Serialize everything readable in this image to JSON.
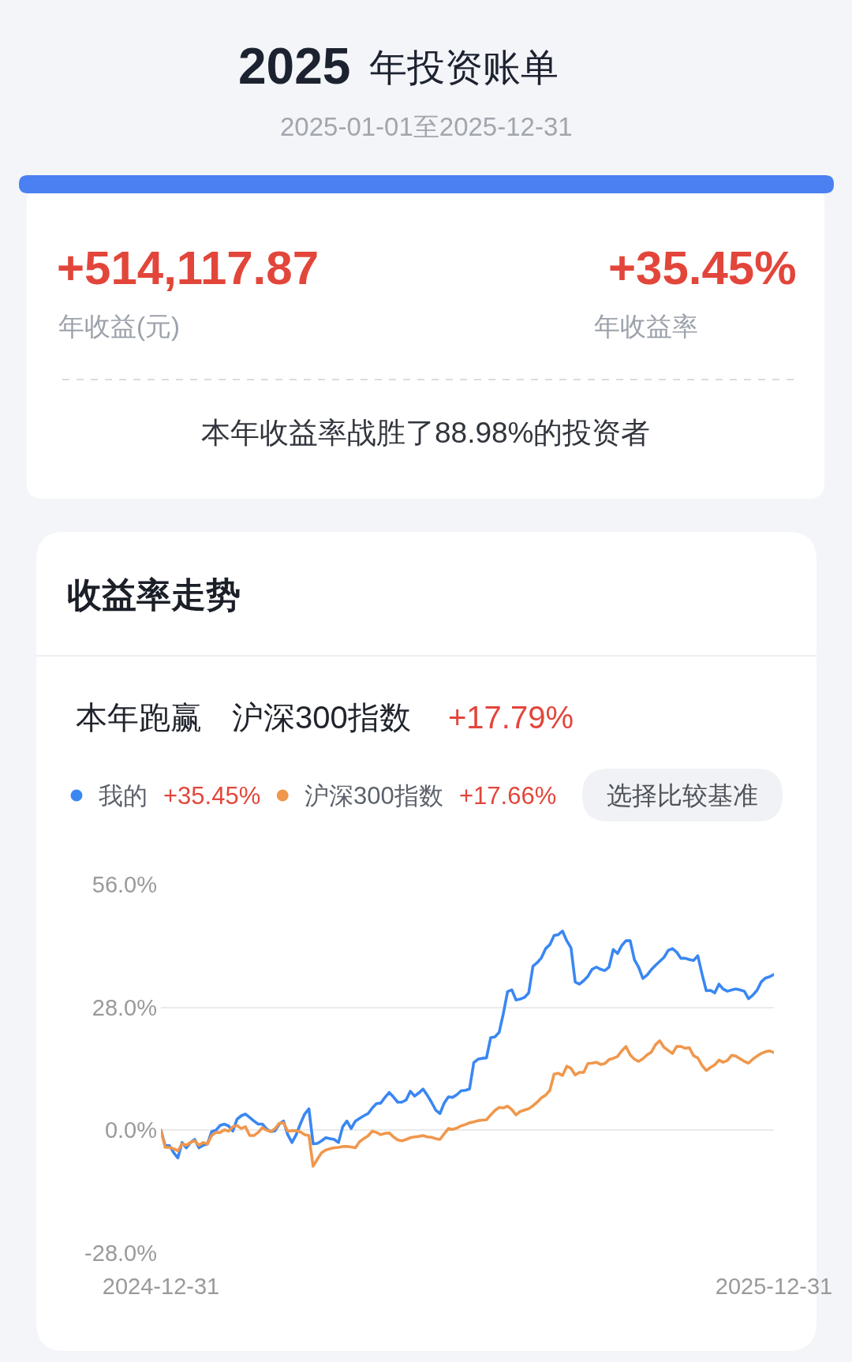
{
  "chart_data": {
    "type": "line",
    "title": "收益率走势",
    "annotations": [
      "2025",
      "年投资账单",
      "2025-01-01至2025-12-31",
      "+514,117.87",
      "年收益(元)",
      "+35.45%",
      "年收益率",
      "本年收益率战胜了88.98%的投资者",
      "本年跑赢",
      "沪深300指数",
      "+17.79%",
      "+35.45%",
      "+17.66%",
      "选择比较基准"
    ],
    "categories": [
      "2024-12-31",
      null,
      null,
      null,
      null,
      null,
      null,
      null,
      null,
      null,
      null,
      null,
      null,
      null,
      null,
      null,
      null,
      null,
      null,
      null,
      null,
      null,
      null,
      null,
      null,
      null,
      null,
      null,
      null,
      null,
      null,
      null,
      null,
      null,
      null,
      null,
      null,
      null,
      null,
      null,
      null,
      null,
      null,
      null,
      null,
      null,
      null,
      null,
      null,
      null,
      null,
      null,
      null,
      null,
      null,
      null,
      null,
      null,
      null,
      null,
      null,
      null,
      null,
      null,
      null,
      null,
      null,
      null,
      null,
      null,
      null,
      null,
      null,
      null,
      null,
      null,
      null,
      null,
      null,
      null,
      null,
      null,
      null,
      null,
      null,
      null,
      null,
      null,
      null,
      null,
      null,
      null,
      null,
      null,
      null,
      null,
      null,
      null,
      null,
      null,
      null,
      null,
      null,
      null,
      null,
      null,
      null,
      null,
      null,
      null,
      null,
      null,
      null,
      null,
      null,
      null,
      null,
      null,
      null,
      null,
      null,
      null,
      null,
      null,
      null,
      null,
      null,
      null,
      null,
      null,
      null,
      null,
      null,
      null,
      null,
      null,
      null,
      null,
      null,
      null,
      null,
      null,
      null,
      null,
      null,
      "2025-12-31"
    ],
    "series": [
      {
        "name": "我的",
        "color": "#3a87f2",
        "values": [
          0.0,
          -3.5,
          -3.5,
          -5.1,
          -6.3,
          -2.8,
          -4.0,
          -2.8,
          -2.1,
          -4.0,
          -3.4,
          -3.1,
          -0.3,
          0.0,
          1.1,
          1.4,
          1.0,
          -0.2,
          2.5,
          3.3,
          3.7,
          2.9,
          2.1,
          1.4,
          1.4,
          0.3,
          -0.3,
          -0.1,
          1.4,
          2.1,
          -1.0,
          -2.8,
          -1.0,
          1.5,
          3.7,
          4.9,
          -3.1,
          -3.0,
          -2.4,
          -1.7,
          -1.9,
          -2.1,
          -2.8,
          0.8,
          2.1,
          0.4,
          2.1,
          2.7,
          3.3,
          3.8,
          5.1,
          6.1,
          6.2,
          7.5,
          8.6,
          7.6,
          6.4,
          6.4,
          6.9,
          8.9,
          7.8,
          8.5,
          9.4,
          8.0,
          6.4,
          4.6,
          3.8,
          6.2,
          7.6,
          7.5,
          8.1,
          9.0,
          9.1,
          9.4,
          15.4,
          16.2,
          16.4,
          16.5,
          21.1,
          21.3,
          22.3,
          26.6,
          31.6,
          32.0,
          29.7,
          29.9,
          30.3,
          31.3,
          37.4,
          38.2,
          39.3,
          41.4,
          42.3,
          44.4,
          44.6,
          45.4,
          43.2,
          41.6,
          33.8,
          33.3,
          34.1,
          35.1,
          36.7,
          37.2,
          36.7,
          36.4,
          37.2,
          41.2,
          40.3,
          42.1,
          43.2,
          43.2,
          38.9,
          37.2,
          34.6,
          35.4,
          36.6,
          37.6,
          38.5,
          39.4,
          41.0,
          41.4,
          40.6,
          39.2,
          39.2,
          38.9,
          38.7,
          39.8,
          35.6,
          31.8,
          31.9,
          31.3,
          33.3,
          32.2,
          31.7,
          32.0,
          32.2,
          32.0,
          31.7,
          30.0,
          30.8,
          31.9,
          33.8,
          34.7,
          35.0,
          35.5
        ]
      },
      {
        "name": "沪深300指数",
        "color": "#f0974c",
        "values": [
          0.0,
          -3.9,
          -3.9,
          -4.2,
          -4.7,
          -3.1,
          -3.4,
          -2.8,
          -2.4,
          -3.4,
          -2.8,
          -3.1,
          -1.2,
          -0.5,
          -0.5,
          0.1,
          -0.2,
          0.8,
          1.1,
          0.4,
          0.8,
          -1.2,
          -1.2,
          -0.5,
          0.6,
          0.0,
          -0.3,
          0.4,
          1.6,
          1.7,
          -0.2,
          -0.1,
          -0.1,
          -0.4,
          -1.0,
          -1.2,
          -8.2,
          -6.6,
          -5.1,
          -4.5,
          -4.2,
          -4.0,
          -3.9,
          -3.7,
          -3.7,
          -3.8,
          -4.0,
          -2.6,
          -1.9,
          -1.3,
          -0.2,
          -0.5,
          -1.0,
          -0.7,
          -0.6,
          -1.5,
          -2.2,
          -2.4,
          -2.1,
          -1.7,
          -1.5,
          -1.4,
          -1.2,
          -1.5,
          -1.6,
          -1.9,
          -2.1,
          -0.8,
          0.4,
          0.2,
          0.5,
          1.0,
          1.3,
          1.7,
          1.9,
          2.2,
          2.3,
          2.4,
          3.5,
          4.5,
          5.2,
          5.1,
          5.5,
          4.7,
          3.5,
          4.3,
          4.6,
          4.9,
          5.6,
          6.4,
          7.4,
          8.0,
          9.1,
          12.8,
          13.0,
          12.5,
          14.6,
          14.1,
          12.6,
          13.2,
          13.2,
          15.2,
          15.3,
          15.5,
          15.0,
          15.2,
          16.1,
          16.4,
          16.8,
          18.1,
          19.1,
          17.2,
          16.2,
          15.7,
          16.3,
          17.2,
          17.8,
          19.5,
          20.4,
          18.9,
          18.2,
          17.5,
          19.1,
          19.1,
          18.7,
          18.8,
          17.0,
          16.5,
          14.8,
          13.6,
          14.3,
          14.9,
          16.0,
          15.5,
          15.9,
          17.1,
          16.9,
          16.3,
          15.7,
          15.3,
          16.2,
          16.9,
          17.5,
          17.9,
          18.1,
          17.7
        ]
      }
    ],
    "ylim": [
      -28,
      56
    ],
    "yticks": [
      {
        "value": -28,
        "label": "-28.0%"
      },
      {
        "value": 0,
        "label": "0.0%"
      },
      {
        "value": 28,
        "label": "28.0%"
      },
      {
        "value": 56,
        "label": "56.0%"
      }
    ],
    "grid": "y",
    "legend": "top left",
    "line_style": "solid"
  }
}
